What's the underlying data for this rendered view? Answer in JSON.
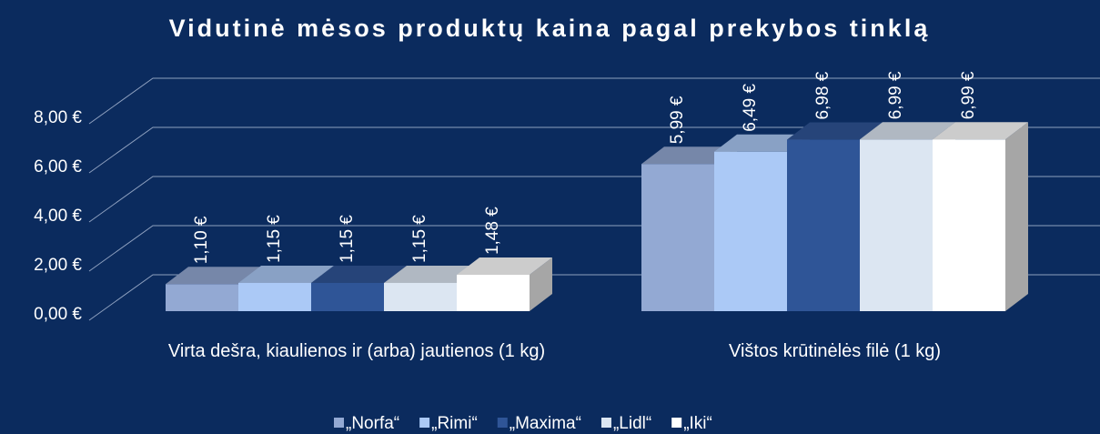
{
  "chart_data": {
    "type": "bar3d",
    "title": "Vidutinė mėsos produktų kaina pagal prekybos tinklą",
    "categories": [
      "Virta dešra, kiaulienos ir (arba) jautienos (1 kg)",
      "Vištos krūtinėlės filė (1 kg)"
    ],
    "series": [
      {
        "name": "„Norfa“",
        "color": "#93a9d3",
        "values": [
          1.1,
          5.99
        ],
        "value_labels": [
          "1,10 €",
          "5,99 €"
        ]
      },
      {
        "name": "„Rimi“",
        "color": "#abc9f6",
        "values": [
          1.15,
          6.49
        ],
        "value_labels": [
          "1,15 €",
          "6,49 €"
        ]
      },
      {
        "name": "„Maxima“",
        "color": "#2f5597",
        "values": [
          1.15,
          6.98
        ],
        "value_labels": [
          "1,15 €",
          "6,98 €"
        ]
      },
      {
        "name": "„Lidl“",
        "color": "#dce6f2",
        "values": [
          1.15,
          6.99
        ],
        "value_labels": [
          "1,15 €",
          "6,99 €"
        ]
      },
      {
        "name": "„Iki“",
        "color": "#ffffff",
        "values": [
          1.48,
          6.99
        ],
        "value_labels": [
          "1,48 €",
          "6,99 €"
        ]
      }
    ],
    "ylim": [
      0,
      8
    ],
    "yticks": [
      {
        "value": 0,
        "label": "0,00 €"
      },
      {
        "value": 2,
        "label": "2,00 €"
      },
      {
        "value": 4,
        "label": "4,00 €"
      },
      {
        "value": 6,
        "label": "6,00 €"
      },
      {
        "value": 8,
        "label": "8,00 €"
      }
    ],
    "grid": true,
    "legend": "bottom"
  }
}
